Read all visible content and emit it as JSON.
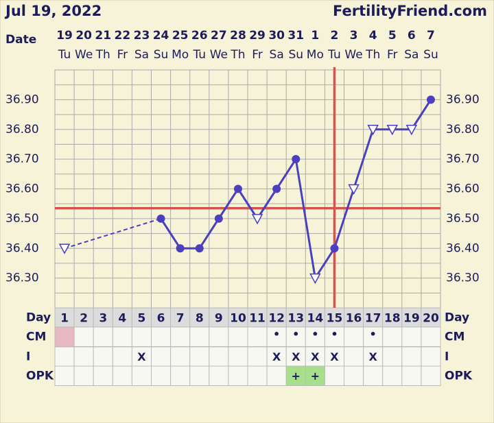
{
  "chart_data": {
    "type": "line",
    "title": "Jul 19, 2022",
    "site": "FertilityFriend.com",
    "date_label": "Date",
    "categories": [
      "19",
      "20",
      "21",
      "22",
      "23",
      "24",
      "25",
      "26",
      "27",
      "28",
      "29",
      "30",
      "31",
      "1",
      "2",
      "3",
      "4",
      "5",
      "6",
      "7"
    ],
    "weekdays": [
      "Tu",
      "We",
      "Th",
      "Fr",
      "Sa",
      "Su",
      "Mo",
      "Tu",
      "We",
      "Th",
      "Fr",
      "Sa",
      "Su",
      "Mo",
      "Tu",
      "We",
      "Th",
      "Fr",
      "Sa",
      "Su"
    ],
    "series": [
      {
        "name": "Temperature",
        "color": "#4b3fc0",
        "values": [
          36.4,
          null,
          null,
          null,
          null,
          36.5,
          36.4,
          36.4,
          36.5,
          36.6,
          36.5,
          36.6,
          36.7,
          36.3,
          36.4,
          36.6,
          36.8,
          36.8,
          36.8,
          36.9
        ],
        "markers": [
          "open",
          null,
          null,
          null,
          null,
          "filled",
          "filled",
          "filled",
          "filled",
          "filled",
          "open",
          "filled",
          "filled",
          "open",
          "filled",
          "open",
          "open",
          "open",
          "open",
          "filled"
        ]
      }
    ],
    "ylim": [
      36.2,
      37.0
    ],
    "yticks": [
      {
        "value": 36.3,
        "label": "36.30"
      },
      {
        "value": 36.4,
        "label": "36.40"
      },
      {
        "value": 36.5,
        "label": "36.50"
      },
      {
        "value": 36.6,
        "label": "36.60"
      },
      {
        "value": 36.7,
        "label": "36.70"
      },
      {
        "value": 36.8,
        "label": "36.80"
      },
      {
        "value": 36.9,
        "label": "36.90"
      }
    ],
    "coverline": 36.535,
    "ovulation_day": 15,
    "grid": true,
    "rows": {
      "day": {
        "label": "Day",
        "values": [
          1,
          2,
          3,
          4,
          5,
          6,
          7,
          8,
          9,
          10,
          11,
          12,
          13,
          14,
          15,
          16,
          17,
          18,
          19,
          20
        ]
      },
      "cm": {
        "label": "CM",
        "values": [
          null,
          null,
          null,
          null,
          null,
          null,
          null,
          null,
          null,
          null,
          null,
          "•",
          "•",
          "•",
          "•",
          null,
          "•",
          null,
          null,
          null
        ]
      },
      "i": {
        "label": "I",
        "values": [
          null,
          null,
          null,
          null,
          "X",
          null,
          null,
          null,
          null,
          null,
          null,
          "X",
          "X",
          "X",
          "X",
          null,
          "X",
          null,
          null,
          null
        ]
      },
      "opk": {
        "label": "OPK",
        "values": [
          null,
          null,
          null,
          null,
          null,
          null,
          null,
          null,
          null,
          null,
          null,
          null,
          "+",
          "+",
          null,
          null,
          null,
          null,
          null,
          null
        ]
      }
    },
    "period_days": [
      1
    ]
  }
}
